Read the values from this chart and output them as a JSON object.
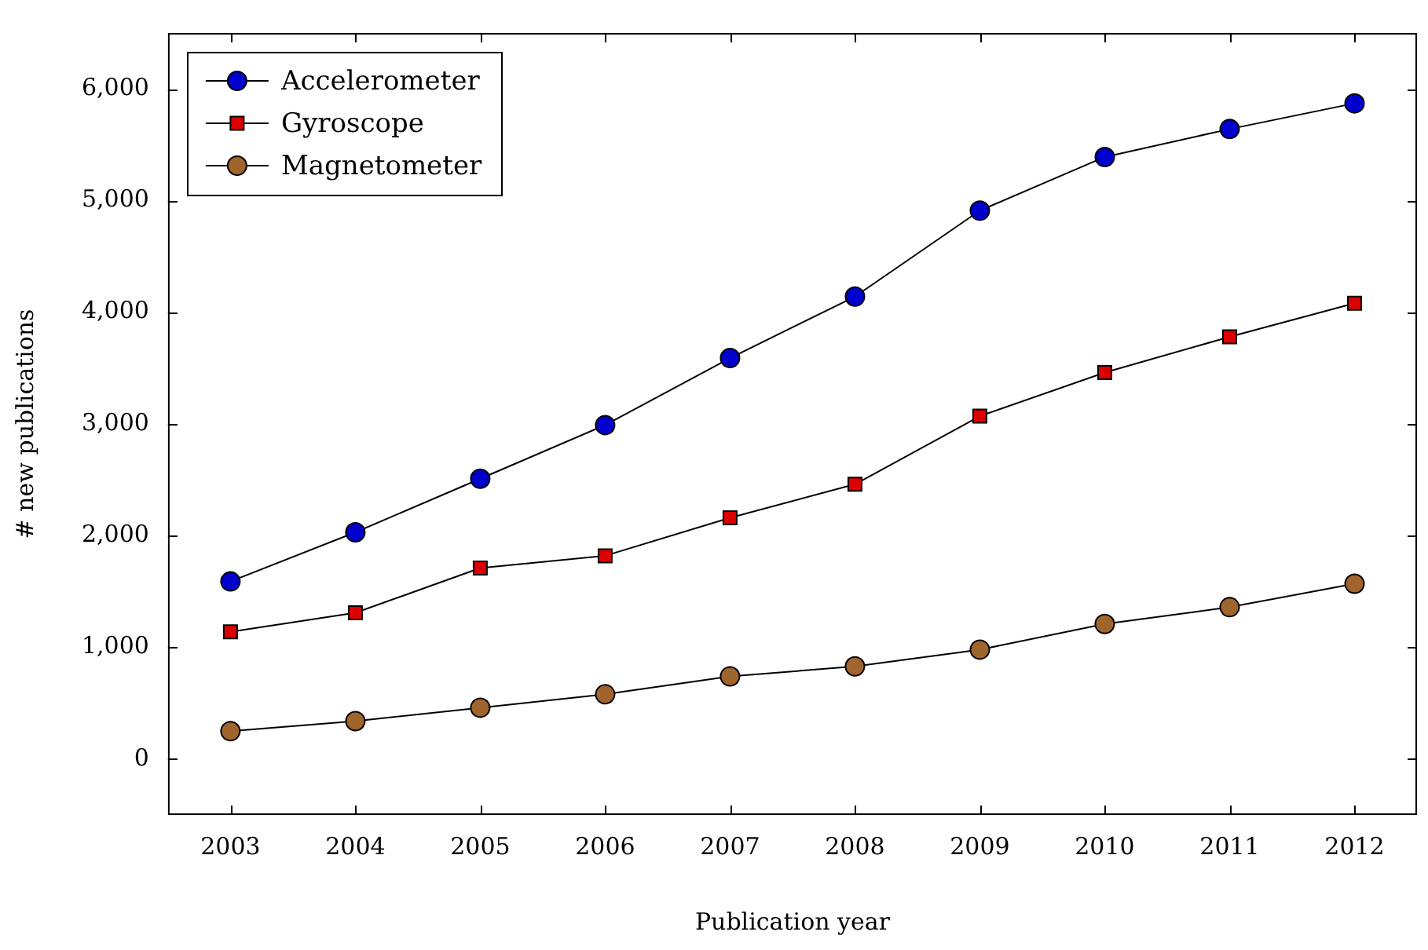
{
  "chart_data": {
    "type": "line",
    "xlabel": "Publication year",
    "ylabel": "# new publications",
    "categories": [
      "2003",
      "2004",
      "2005",
      "2006",
      "2007",
      "2008",
      "2009",
      "2010",
      "2011",
      "2012"
    ],
    "series": [
      {
        "name": "Accelerometer",
        "color": "#0000cc",
        "marker": "circle",
        "values": [
          1590,
          2030,
          2510,
          2990,
          3590,
          4140,
          4910,
          5390,
          5640,
          5870
        ]
      },
      {
        "name": "Gyroscope",
        "color": "#dd0000",
        "marker": "square",
        "values": [
          1140,
          1310,
          1710,
          1820,
          2160,
          2460,
          3070,
          3460,
          3780,
          4080
        ]
      },
      {
        "name": "Magnetometer",
        "color": "#a0642d",
        "marker": "circle",
        "values": [
          250,
          340,
          460,
          580,
          740,
          830,
          980,
          1210,
          1360,
          1570
        ]
      }
    ],
    "ylim": [
      -500,
      6500
    ],
    "yticks": [
      {
        "value": 0,
        "label": "0"
      },
      {
        "value": 1000,
        "label": "1,000"
      },
      {
        "value": 2000,
        "label": "2,000"
      },
      {
        "value": 3000,
        "label": "3,000"
      },
      {
        "value": 4000,
        "label": "4,000"
      },
      {
        "value": 5000,
        "label": "5,000"
      },
      {
        "value": 6000,
        "label": "6,000"
      }
    ],
    "grid": false,
    "legend": "top left"
  }
}
